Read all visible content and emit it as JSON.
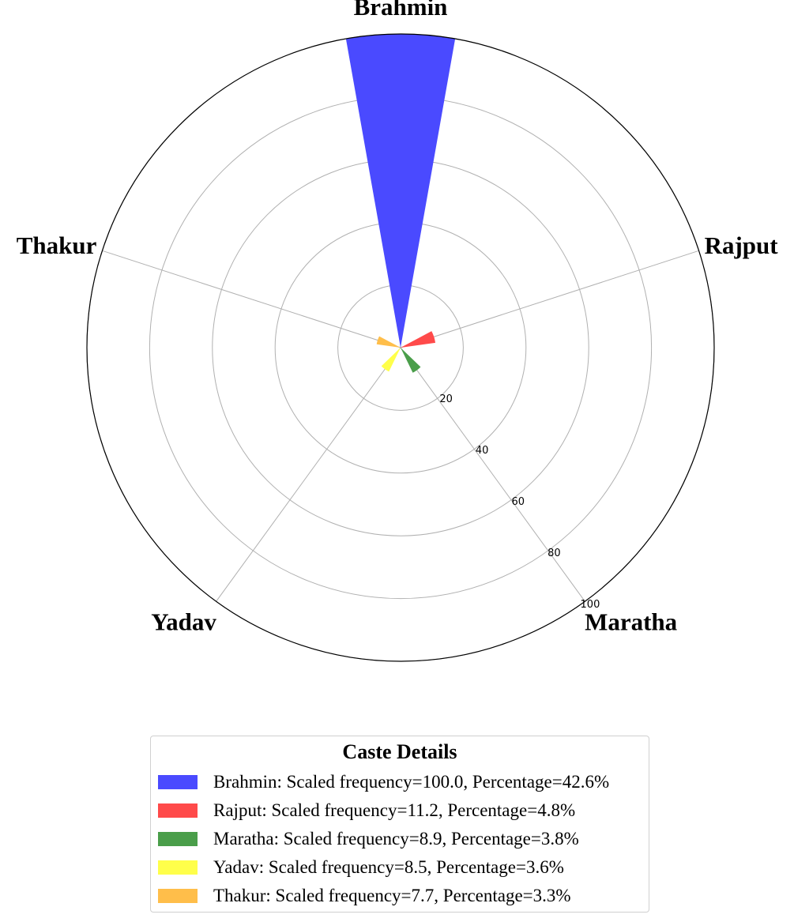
{
  "chart_data": {
    "type": "polar-bar",
    "title": "",
    "categories": [
      "Brahmin",
      "Rajput",
      "Maratha",
      "Yadav",
      "Thakur"
    ],
    "values": [
      100.0,
      11.2,
      8.9,
      8.5,
      7.7
    ],
    "colors": [
      "#4a4aff",
      "#ff4a4a",
      "#4a9e4a",
      "#ffff4a",
      "#ffbe4a"
    ],
    "r_ticks": [
      "20",
      "40",
      "60",
      "80",
      "100"
    ],
    "r_tick_values": [
      20,
      40,
      60,
      80,
      100
    ],
    "rlim": [
      0,
      100
    ],
    "grid": true,
    "legend": {
      "title": "Caste Details",
      "position": "bottom-center",
      "items": [
        "Brahmin: Scaled frequency=100.0, Percentage=42.6%",
        "Rajput: Scaled frequency=11.2, Percentage=4.8%",
        "Maratha: Scaled frequency=8.9, Percentage=3.8%",
        "Yadav: Scaled frequency=8.5, Percentage=3.6%",
        "Thakur: Scaled frequency=7.7, Percentage=3.3%"
      ]
    }
  }
}
